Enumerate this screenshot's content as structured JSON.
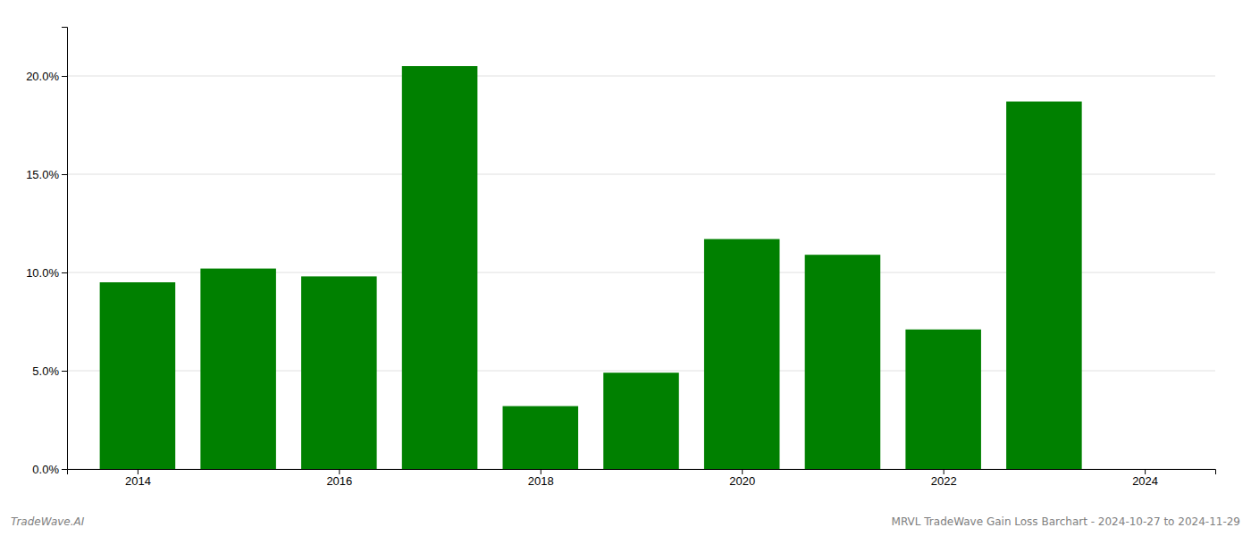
{
  "chart_data": {
    "type": "bar",
    "x": [
      2014,
      2015,
      2016,
      2017,
      2018,
      2019,
      2020,
      2021,
      2022,
      2023
    ],
    "values": [
      0.095,
      0.102,
      0.098,
      0.205,
      0.032,
      0.049,
      0.117,
      0.109,
      0.071,
      0.187
    ],
    "color": "#008000",
    "xlim": [
      2013.3,
      2024.7
    ],
    "xticks": [
      2014,
      2016,
      2018,
      2020,
      2022,
      2024
    ],
    "ylim": [
      0,
      0.225
    ],
    "yticks": [
      {
        "value": 0.0,
        "label": "0.0%"
      },
      {
        "value": 0.05,
        "label": "5.0%"
      },
      {
        "value": 0.1,
        "label": "10.0%"
      },
      {
        "value": 0.15,
        "label": "15.0%"
      },
      {
        "value": 0.2,
        "label": "20.0%"
      }
    ],
    "grid": true,
    "annotations": [
      "TradeWave.AI",
      "MRVL TradeWave Gain Loss Barchart - 2024-10-27 to 2024-11-29"
    ]
  }
}
